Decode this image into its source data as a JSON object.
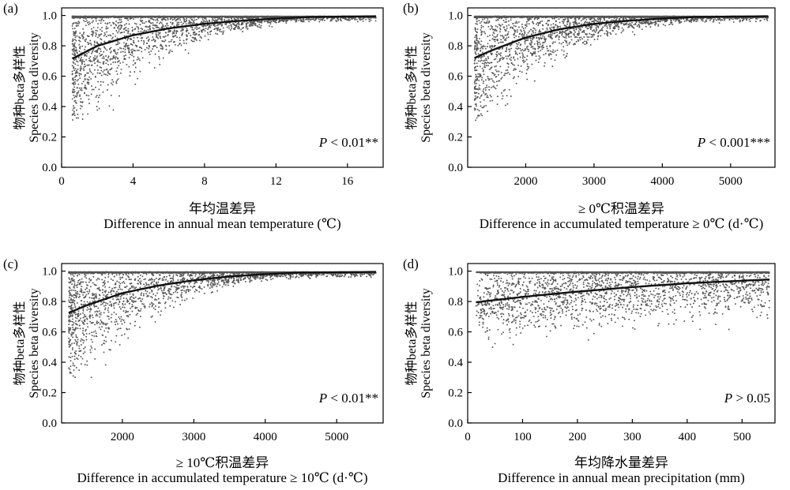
{
  "figure": {
    "panel_labels": [
      "(a)",
      "(b)",
      "(c)",
      "(d)"
    ]
  },
  "chart_data": [
    {
      "type": "scatter",
      "panel": "(a)",
      "xlabel_cn": "年均温差异",
      "xlabel": "Difference in annual mean temperature (℃)",
      "ylabel_cn": "物种beta多样性",
      "ylabel": "Species beta diversity",
      "xlim": [
        0,
        18
      ],
      "ylim": [
        0,
        1.05
      ],
      "xticks": [
        0,
        4,
        8,
        12,
        16
      ],
      "yticks": [
        0.0,
        0.2,
        0.4,
        0.6,
        0.8,
        1.0
      ],
      "x_range_data": [
        0.6,
        17.6
      ],
      "annotation": {
        "p_label": "P",
        "p_value_text": "< 0.01**"
      },
      "fit_curve": {
        "x": [
          0.6,
          2,
          4,
          6,
          8,
          10,
          12,
          14,
          17.6
        ],
        "y": [
          0.715,
          0.8,
          0.87,
          0.915,
          0.945,
          0.965,
          0.98,
          0.99,
          0.995
        ]
      }
    },
    {
      "type": "scatter",
      "panel": "(b)",
      "xlabel_cn": "≥ 0℃积温差异",
      "xlabel": "Difference in accumulated temperature ≥ 0℃ (d·℃)",
      "ylabel_cn": "物种beta多样性",
      "ylabel": "Species beta diversity",
      "xlim": [
        1150,
        5650
      ],
      "ylim": [
        0,
        1.05
      ],
      "xticks": [
        2000,
        3000,
        4000,
        5000
      ],
      "yticks": [
        0.0,
        0.2,
        0.4,
        0.6,
        0.8,
        1.0
      ],
      "x_range_data": [
        1250,
        5550
      ],
      "annotation": {
        "p_label": "P",
        "p_value_text": "< 0.001***"
      },
      "fit_curve": {
        "x": [
          1250,
          1500,
          2000,
          2500,
          3000,
          3500,
          4000,
          4500,
          5550
        ],
        "y": [
          0.72,
          0.77,
          0.855,
          0.91,
          0.945,
          0.965,
          0.98,
          0.99,
          0.995
        ]
      }
    },
    {
      "type": "scatter",
      "panel": "(c)",
      "xlabel_cn": "≥ 10℃积温差异",
      "xlabel": "Difference in accumulated temperature ≥ 10℃ (d·℃)",
      "ylabel_cn": "物种beta多样性",
      "ylabel": "Species beta diversity",
      "xlim": [
        1150,
        5650
      ],
      "ylim": [
        0,
        1.05
      ],
      "xticks": [
        2000,
        3000,
        4000,
        5000
      ],
      "yticks": [
        0.0,
        0.2,
        0.4,
        0.6,
        0.8,
        1.0
      ],
      "x_range_data": [
        1250,
        5550
      ],
      "annotation": {
        "p_label": "P",
        "p_value_text": "< 0.01**"
      },
      "fit_curve": {
        "x": [
          1250,
          1500,
          2000,
          2500,
          3000,
          3500,
          4000,
          4500,
          5550
        ],
        "y": [
          0.725,
          0.775,
          0.855,
          0.905,
          0.94,
          0.965,
          0.98,
          0.99,
          0.995
        ]
      }
    },
    {
      "type": "scatter",
      "panel": "(d)",
      "xlabel_cn": "年均降水量差异",
      "xlabel": "Difference in annual mean precipitation (mm)",
      "ylabel_cn": "物种beta多样性",
      "ylabel": "Species beta diversity",
      "xlim": [
        0,
        560
      ],
      "ylim": [
        0,
        1.05
      ],
      "xticks": [
        0,
        100,
        200,
        300,
        400,
        500
      ],
      "yticks": [
        0.0,
        0.2,
        0.4,
        0.6,
        0.8,
        1.0
      ],
      "x_range_data": [
        15,
        550
      ],
      "annotation": {
        "p_label": "P",
        "p_value_text": "> 0.05"
      },
      "fit_curve": {
        "x": [
          15,
          100,
          200,
          300,
          400,
          550
        ],
        "y": [
          0.795,
          0.83,
          0.865,
          0.895,
          0.92,
          0.945
        ]
      }
    }
  ],
  "style": {
    "point_color": "#555555",
    "curve_color": "#111111",
    "axis_color": "#000000"
  }
}
